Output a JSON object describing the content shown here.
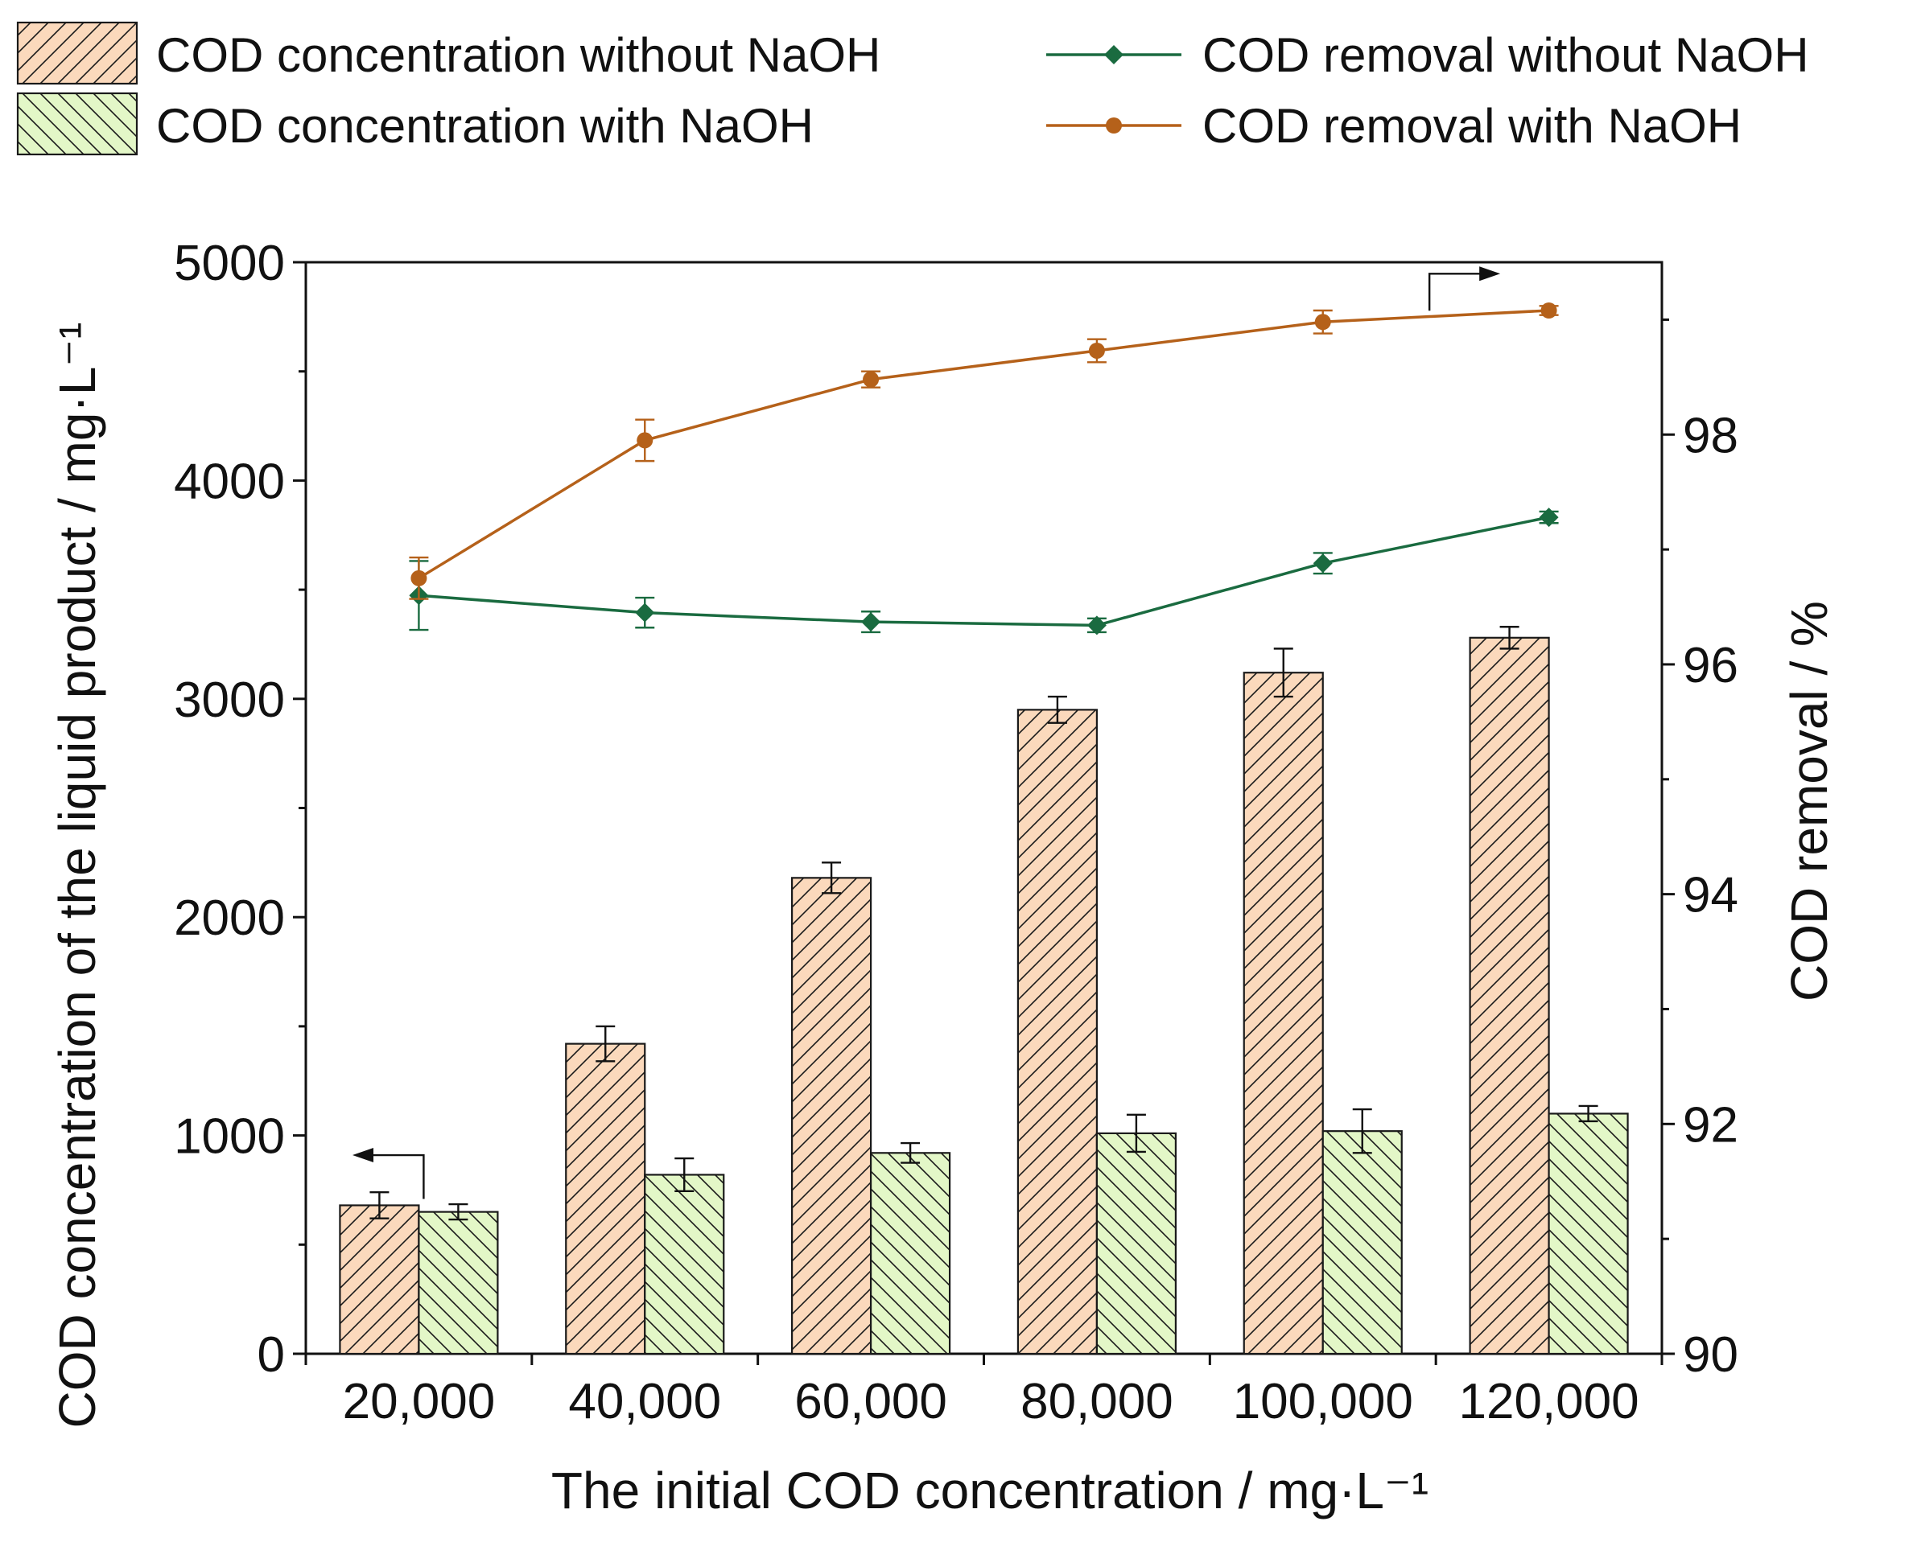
{
  "chart_data": {
    "type": "bar",
    "title": "",
    "xlabel": "The initial COD concentration / mg·L⁻¹",
    "ylabel_left": "COD concentration of the liquid product / mg·L⁻¹",
    "ylabel_right": "COD removal / %",
    "categories": [
      "20,000",
      "40,000",
      "60,000",
      "80,000",
      "100,000",
      "120,000"
    ],
    "ylim_left": [
      0,
      5000
    ],
    "yticks_left": [
      0,
      1000,
      2000,
      3000,
      4000,
      5000
    ],
    "ylim_right": [
      90,
      99.5
    ],
    "yticks_right": [
      90,
      92,
      94,
      96,
      98
    ],
    "bar_series": [
      {
        "name": "COD concentration without NaOH",
        "values": [
          680,
          1420,
          2180,
          2950,
          3120,
          3280
        ],
        "errors": [
          60,
          80,
          70,
          60,
          110,
          50
        ],
        "fill": "#fbd9bc",
        "hatch": "forward",
        "axis": "left"
      },
      {
        "name": "COD concentration with NaOH",
        "values": [
          650,
          820,
          920,
          1010,
          1020,
          1100
        ],
        "errors": [
          35,
          75,
          45,
          85,
          100,
          35
        ],
        "fill": "#e3f7c7",
        "hatch": "backward",
        "axis": "left"
      }
    ],
    "line_series": [
      {
        "name": "COD removal without NaOH",
        "values": [
          96.6,
          96.45,
          96.37,
          96.34,
          96.88,
          97.28
        ],
        "errors": [
          0.3,
          0.13,
          0.09,
          0.06,
          0.09,
          0.05
        ],
        "color": "#1a6b40",
        "marker": "diamond",
        "axis": "right"
      },
      {
        "name": "COD removal with NaOH",
        "values": [
          96.75,
          97.95,
          98.48,
          98.73,
          98.98,
          99.08
        ],
        "errors": [
          0.18,
          0.18,
          0.07,
          0.1,
          0.1,
          0.04
        ],
        "color": "#b5611a",
        "marker": "circle",
        "axis": "right"
      }
    ],
    "legend": "top"
  }
}
